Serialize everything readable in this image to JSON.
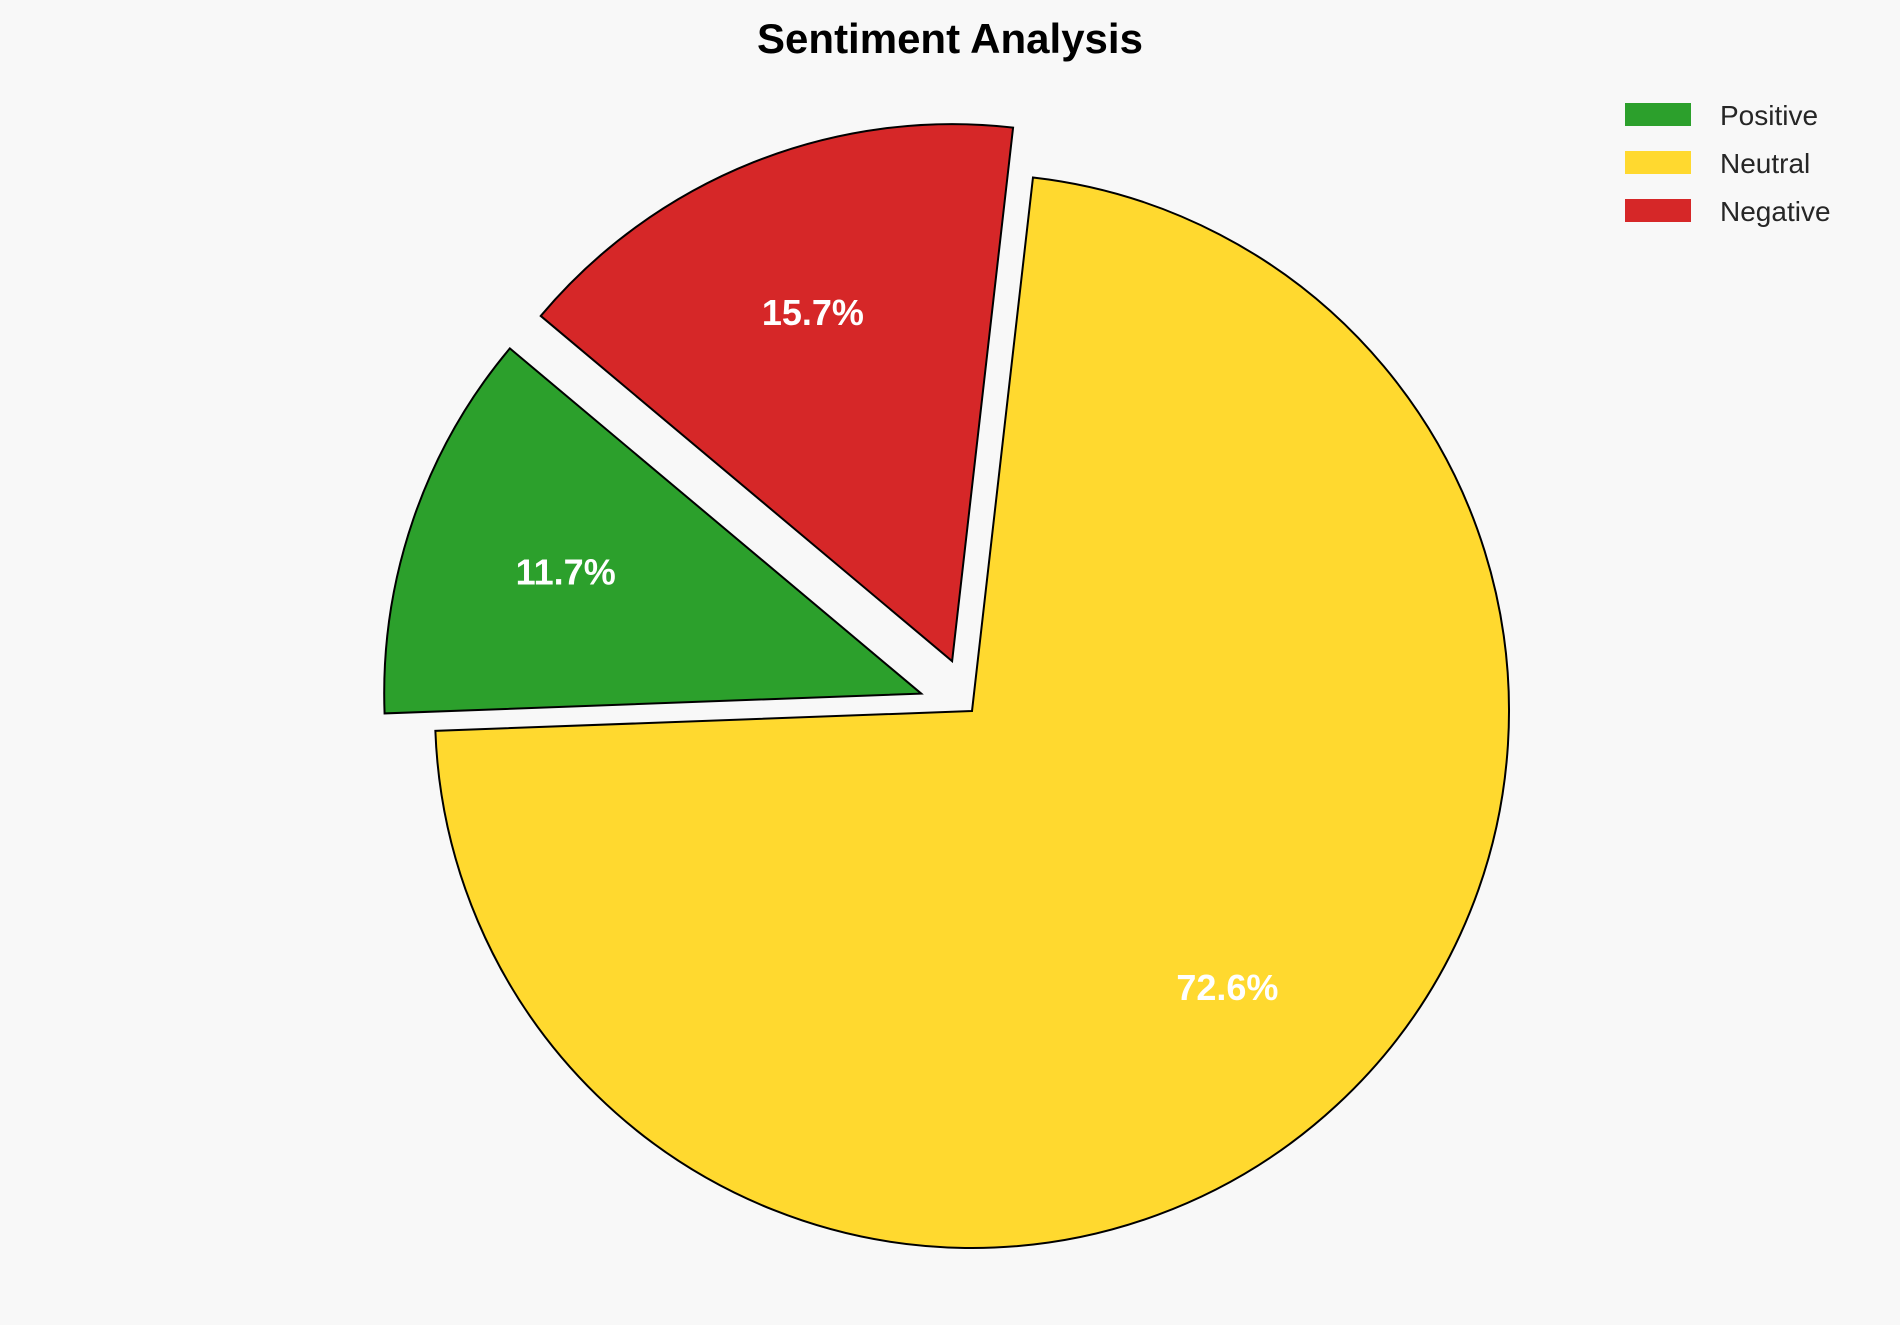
{
  "chart_data": {
    "type": "pie",
    "title": "Sentiment Analysis",
    "categories": [
      "Positive",
      "Neutral",
      "Negative"
    ],
    "values": [
      11.7,
      72.6,
      15.7
    ],
    "labels": [
      "11.7%",
      "72.6%",
      "15.7%"
    ],
    "colors": [
      "#2ca02c",
      "#ffd92f",
      "#d62728"
    ],
    "explode": [
      0.1,
      0,
      0.1
    ],
    "start_angle_deg": 140,
    "direction": "counterclockwise",
    "legend_placement": "top-right",
    "background": "#f8f8f8"
  }
}
